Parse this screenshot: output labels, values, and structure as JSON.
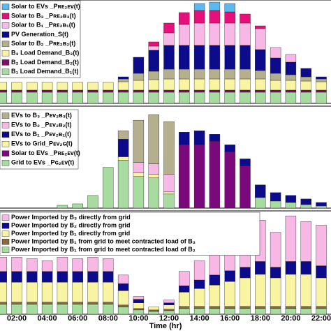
{
  "chart_data": [
    {
      "type": "bar",
      "stacked": true,
      "ylim": [
        0,
        148
      ],
      "legend": "upper left",
      "series": [
        {
          "name": "B₁ Load Demand_B₁(t)",
          "color": "#a8dba0",
          "values": [
            16,
            16,
            16,
            16,
            16,
            16,
            16,
            16,
            16,
            16,
            16,
            16,
            16,
            16,
            16,
            16,
            16,
            16,
            16,
            16,
            16,
            16
          ]
        },
        {
          "name": "B₂ Load Demand_B₂(t)",
          "color": "#7a0f6e",
          "values": [
            3,
            3,
            3,
            3,
            3,
            3,
            3,
            3,
            3,
            3,
            3,
            3,
            3,
            3,
            3,
            3,
            3,
            3,
            3,
            3,
            3,
            3
          ]
        },
        {
          "name": "B₃ Load Demand_B₃(t)",
          "color": "#f8f4a2",
          "values": [
            11,
            11,
            11,
            11,
            11,
            11,
            11,
            11,
            12,
            14,
            15,
            16,
            16,
            16,
            16,
            16,
            16,
            16,
            14,
            14,
            13,
            12
          ]
        },
        {
          "name": "Solar to B₂ _Pʀᴇ₂ʙ₂(t)",
          "color": "#b4af8c",
          "values": [
            0,
            0,
            0,
            0,
            0,
            0,
            0,
            0,
            4,
            10,
            12,
            14,
            14,
            14,
            14,
            14,
            14,
            12,
            10,
            8,
            6,
            4
          ]
        },
        {
          "name": "PV Generation_S(t)",
          "color": "#0b0b8c",
          "values": [
            0,
            0,
            0,
            0,
            0,
            0,
            0,
            0,
            3,
            23,
            30,
            34,
            34,
            34,
            34,
            34,
            34,
            30,
            22,
            18,
            12,
            3
          ]
        },
        {
          "name": "Solar to B₁ _Pʀᴇ₂ʙ₁(t)",
          "color": "#f8b8e6",
          "values": [
            0,
            0,
            0,
            0,
            0,
            0,
            0,
            0,
            0,
            0,
            6,
            18,
            30,
            32,
            32,
            32,
            32,
            30,
            15,
            11,
            0,
            0
          ]
        },
        {
          "name": "Solar to B₃ _Pʀᴇ₂ʙ₃(t)",
          "color": "#e6107a",
          "values": [
            0,
            0,
            0,
            0,
            0,
            0,
            0,
            0,
            0,
            0,
            6,
            14,
            17,
            18,
            18,
            16,
            13,
            4,
            0,
            0,
            0,
            0
          ]
        },
        {
          "name": "Solar to EVs _Pʀᴇ₂ᴇᴠ(t)",
          "color": "#5cb8ee",
          "values": [
            0,
            0,
            0,
            0,
            0,
            0,
            0,
            0,
            0,
            0,
            0,
            0,
            0,
            10,
            12,
            12,
            0,
            0,
            0,
            0,
            0,
            0
          ]
        }
      ]
    },
    {
      "type": "bar",
      "stacked": true,
      "ylim": [
        0,
        145
      ],
      "legend": "upper left",
      "series": [
        {
          "name": "Grid to EVs _Pɢ₂ᴇᴠ(t)",
          "color": "#a8dba0",
          "values": [
            0,
            0,
            0,
            0,
            4,
            6,
            18,
            58,
            68,
            45,
            43,
            20,
            0,
            0,
            0,
            0,
            0,
            15,
            10,
            8,
            5,
            3
          ]
        },
        {
          "name": "Solar to EVs _Pʀᴇ₂ᴇᴠ(t)",
          "color": "#7a0a7c",
          "values": [
            0,
            0,
            0,
            0,
            0,
            0,
            0,
            0,
            0,
            0,
            0,
            0,
            90,
            90,
            95,
            80,
            60,
            0,
            0,
            0,
            0,
            0
          ]
        },
        {
          "name": "EVs to Grid_Pᴇᴠ₂ɢ(t)",
          "color": "#f8f4a2",
          "values": [
            0,
            0,
            0,
            0,
            0,
            0,
            0,
            0,
            5,
            5,
            5,
            3,
            0,
            0,
            0,
            0,
            0,
            0,
            0,
            0,
            0,
            0
          ]
        },
        {
          "name": "EVs to B₁ _Pᴇᴠ₂ʙ₁(t)",
          "color": "#0b0b8c",
          "values": [
            0,
            0,
            0,
            0,
            0,
            0,
            0,
            0,
            25,
            0,
            0,
            0,
            18,
            20,
            10,
            10,
            10,
            18,
            12,
            10,
            8,
            5
          ]
        },
        {
          "name": "EVs to B₂ _Pᴇᴠ₂ʙ₂(t)",
          "color": "#f8b8e6",
          "values": [
            0,
            0,
            0,
            0,
            0,
            0,
            0,
            0,
            0,
            15,
            15,
            25,
            0,
            0,
            0,
            0,
            0,
            0,
            0,
            0,
            0,
            0
          ]
        },
        {
          "name": "EVs to B₃ _Pᴇᴠ₂ʙ₃(t)",
          "color": "#b4af8c",
          "values": [
            0,
            0,
            0,
            0,
            0,
            0,
            0,
            0,
            12,
            60,
            70,
            75,
            0,
            0,
            0,
            0,
            0,
            0,
            0,
            0,
            0,
            0
          ]
        }
      ]
    },
    {
      "type": "bar",
      "stacked": true,
      "ylim": [
        0,
        145
      ],
      "legend": "upper left",
      "xlabel": "Time (hr)",
      "categories": [
        null,
        "02:00",
        null,
        "04:00",
        null,
        "06:00",
        null,
        "08:00",
        null,
        "10:00",
        null,
        "12:00",
        null,
        "14:00",
        null,
        "16:00",
        null,
        "18:00",
        null,
        "20:00",
        null,
        "22:00"
      ],
      "series": [
        {
          "name": "Power Imported by B₁ from grid to meet contracted load of B₂",
          "color": "#a8dba0",
          "values": [
            14,
            14,
            14,
            14,
            14,
            14,
            14,
            14,
            10,
            6,
            4,
            5,
            8,
            8,
            8,
            8,
            8,
            8,
            8,
            8,
            8,
            8
          ]
        },
        {
          "name": "Power Imported by B₁ from grid to meet contracted load of B₃",
          "color": "#8a6a3a",
          "values": [
            3,
            3,
            3,
            3,
            3,
            3,
            3,
            3,
            3,
            2,
            2,
            2,
            3,
            3,
            3,
            3,
            3,
            3,
            3,
            3,
            3,
            3
          ]
        },
        {
          "name": "Power Imported by B₁ directly from grid",
          "color": "#f8f4a2",
          "values": [
            28,
            28,
            28,
            28,
            28,
            28,
            28,
            28,
            20,
            8,
            4,
            6,
            20,
            25,
            30,
            35,
            40,
            45,
            40,
            45,
            45,
            40
          ]
        },
        {
          "name": "Power Imported by B₂ directly from grid",
          "color": "#0b0b8c",
          "values": [
            15,
            15,
            15,
            15,
            15,
            15,
            15,
            15,
            10,
            5,
            0,
            3,
            9,
            12,
            14,
            15,
            15,
            18,
            15,
            18,
            18,
            17
          ]
        },
        {
          "name": "Power Imported by B₃ directly from grid",
          "color": "#f8b8e6",
          "values": [
            20,
            20,
            18,
            15,
            20,
            18,
            20,
            18,
            12,
            4,
            0,
            4,
            20,
            27,
            40,
            44,
            54,
            58,
            49,
            64,
            56,
            57
          ]
        }
      ]
    }
  ]
}
